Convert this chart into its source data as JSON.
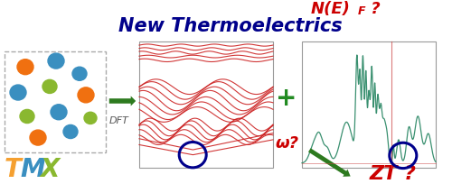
{
  "title": "New Thermoelectrics",
  "title_color": "#00008B",
  "title_fontsize": 15,
  "dft_label": "DFT",
  "omega_label": "ω?",
  "nef_label": "N(E)",
  "nef_sub": "F",
  "nef_suffix": " ?",
  "zt_label": "ZT ?",
  "omega_color": "#cc0000",
  "nef_color": "#cc0000",
  "zt_color": "#cc0000",
  "arrow_color": "#2d7a1f",
  "band_color": "#cc2222",
  "dos_line_color": "#3a9070",
  "circle_color": "#00008b",
  "bg_color": "#ffffff",
  "tmx_T_color": "#f5a030",
  "tmx_M_color": "#3a8fc0",
  "tmx_X_color": "#8ab830",
  "plus_color": "#228B22",
  "box_edge_color": "#aaaaaa",
  "atom_positions": [
    [
      28,
      148,
      "#f07010",
      9
    ],
    [
      62,
      155,
      "#3a8fc0",
      9
    ],
    [
      20,
      118,
      "#3a8fc0",
      9
    ],
    [
      55,
      125,
      "#8ab830",
      8
    ],
    [
      88,
      140,
      "#3a8fc0",
      8
    ],
    [
      30,
      90,
      "#8ab830",
      8
    ],
    [
      65,
      95,
      "#3a8fc0",
      9
    ],
    [
      95,
      115,
      "#f07010",
      9
    ],
    [
      42,
      65,
      "#f07010",
      9
    ],
    [
      78,
      72,
      "#3a8fc0",
      8
    ],
    [
      100,
      88,
      "#8ab830",
      7
    ]
  ]
}
